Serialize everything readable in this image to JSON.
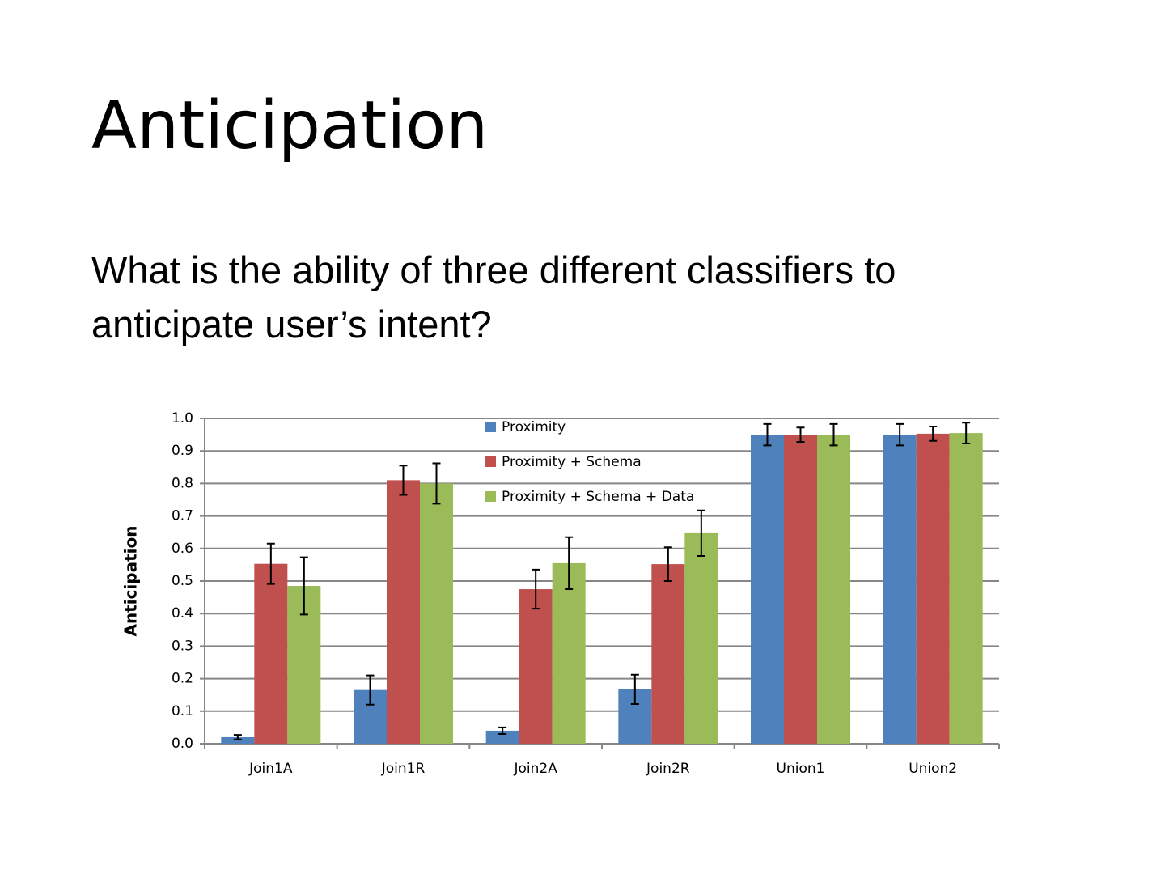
{
  "slide": {
    "title": "Anticipation",
    "body": "What is the ability of three different classifiers to anticipate user’s intent?"
  },
  "chart_data": {
    "type": "bar",
    "ylabel": "Anticipation",
    "categories": [
      "Join1A",
      "Join1R",
      "Join2A",
      "Join2R",
      "Union1",
      "Union2"
    ],
    "series": [
      {
        "name": "Proximity",
        "color": "#4f81bd",
        "values": [
          0.02,
          0.165,
          0.04,
          0.167,
          0.95,
          0.95
        ],
        "errors": [
          0.007,
          0.045,
          0.01,
          0.045,
          0.033,
          0.033
        ]
      },
      {
        "name": "Proximity + Schema",
        "color": "#c0504d",
        "values": [
          0.553,
          0.81,
          0.475,
          0.552,
          0.95,
          0.953
        ],
        "errors": [
          0.062,
          0.045,
          0.06,
          0.052,
          0.022,
          0.022
        ]
      },
      {
        "name": "Proximity + Schema + Data",
        "color": "#9bbb59",
        "values": [
          0.485,
          0.8,
          0.555,
          0.647,
          0.95,
          0.955
        ],
        "errors": [
          0.088,
          0.062,
          0.08,
          0.07,
          0.033,
          0.032
        ]
      }
    ],
    "ylim": [
      0,
      1
    ],
    "yticks": [
      {
        "value": 0,
        "label": "0.0"
      },
      0.1,
      0.2,
      0.3,
      0.4,
      0.5,
      0.6,
      0.7,
      0.8,
      0.9,
      {
        "value": 1,
        "label": "1.0"
      }
    ],
    "grid": true,
    "legend": "top"
  }
}
